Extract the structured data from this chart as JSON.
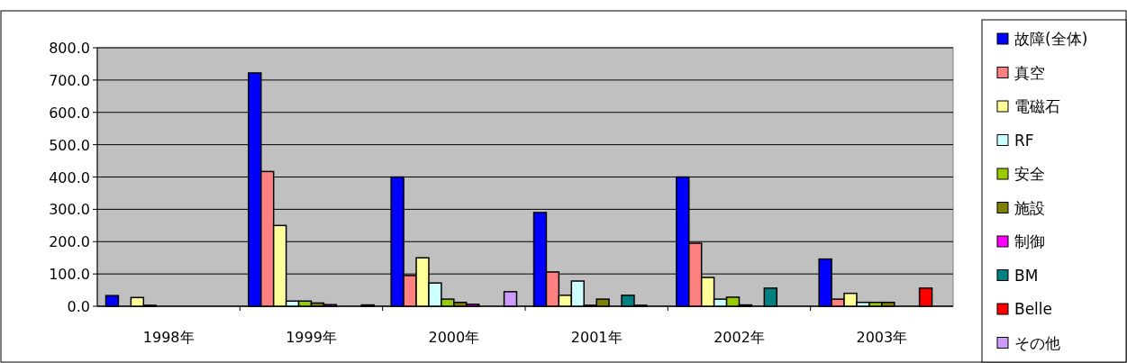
{
  "chart_data": {
    "type": "bar",
    "categories": [
      "1998年",
      "1999年",
      "2000年",
      "2001年",
      "2002年",
      "2003年"
    ],
    "series": [
      {
        "name": "故障(全体)",
        "color": "#0000ff",
        "values": [
          33,
          722,
          400,
          290,
          400,
          146
        ]
      },
      {
        "name": "真空",
        "color": "#ff8080",
        "values": [
          0,
          417,
          95,
          106,
          195,
          22
        ]
      },
      {
        "name": "電磁石",
        "color": "#ffff99",
        "values": [
          27,
          250,
          150,
          34,
          89,
          40
        ]
      },
      {
        "name": "RF",
        "color": "#ccffff",
        "values": [
          3,
          16,
          72,
          78,
          22,
          12
        ]
      },
      {
        "name": "安全",
        "color": "#99cc00",
        "values": [
          0,
          16,
          22,
          3,
          28,
          12
        ]
      },
      {
        "name": "施設",
        "color": "#808000",
        "values": [
          0,
          10,
          12,
          22,
          4,
          12
        ]
      },
      {
        "name": "制御",
        "color": "#ff00ff",
        "values": [
          0,
          5,
          6,
          0,
          0,
          0
        ]
      },
      {
        "name": "BM",
        "color": "#008080",
        "values": [
          0,
          0,
          0,
          34,
          56,
          0
        ]
      },
      {
        "name": "Belle",
        "color": "#ff0000",
        "values": [
          0,
          0,
          0,
          3,
          0,
          56
        ]
      },
      {
        "name": "その他",
        "color": "#cc99ff",
        "values": [
          0,
          4,
          45,
          0,
          0,
          0
        ]
      }
    ],
    "ylim": [
      0,
      800
    ],
    "yticks": [
      {
        "value": 0,
        "label": "0.0"
      },
      {
        "value": 100,
        "label": "100.0"
      },
      {
        "value": 200,
        "label": "200.0"
      },
      {
        "value": 300,
        "label": "300.0"
      },
      {
        "value": 400,
        "label": "400.0"
      },
      {
        "value": 500,
        "label": "500.0"
      },
      {
        "value": 600,
        "label": "600.0"
      },
      {
        "value": 700,
        "label": "700.0"
      },
      {
        "value": 800,
        "label": "800.0"
      }
    ],
    "grid": "y",
    "legend": "right"
  }
}
